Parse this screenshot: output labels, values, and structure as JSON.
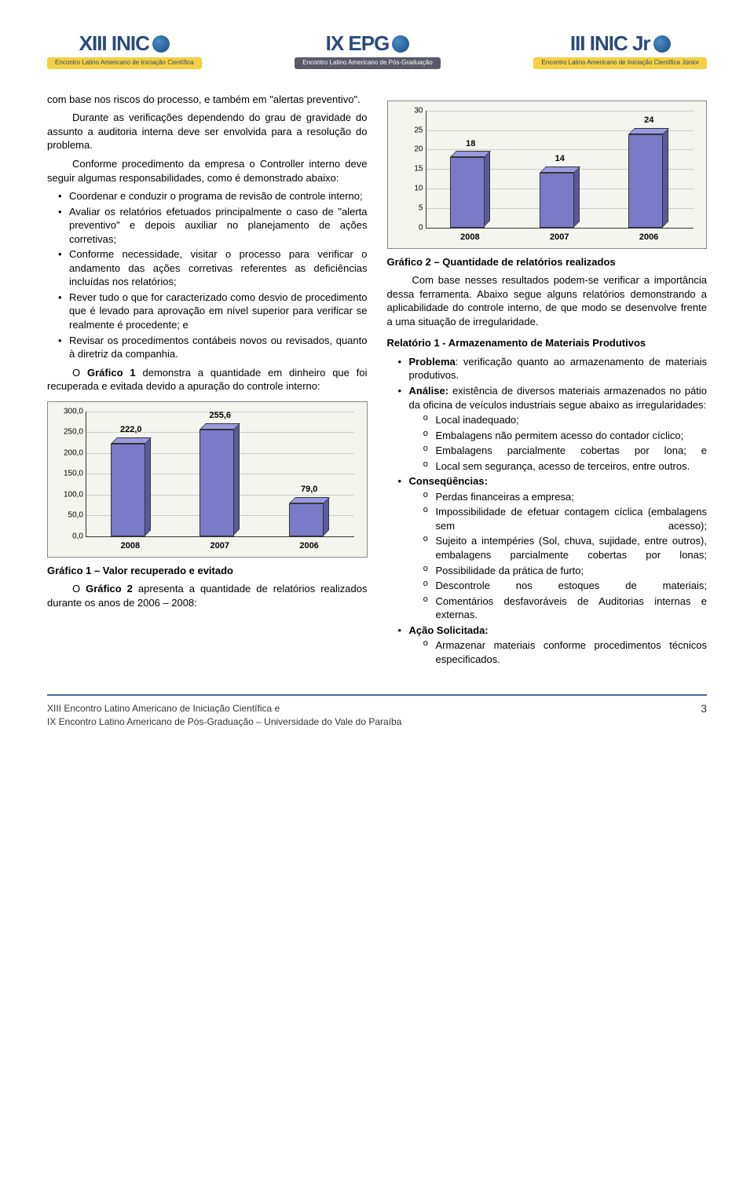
{
  "header": {
    "logos": [
      {
        "title": "XIII INIC",
        "band": "Encontro Latino Americano\nde Iniciação Científica",
        "band_class": ""
      },
      {
        "title": "IX EPG",
        "band": "Encontro Latino Americano\nde Pós-Graduação",
        "band_class": "dark"
      },
      {
        "title": "III INIC Jr",
        "band": "Encontro Latino Americano\nde Iniciação Científica Júnior",
        "band_class": ""
      }
    ]
  },
  "left": {
    "p1": "com base nos riscos do processo, e também em \"alertas preventivo\".",
    "p2": "Durante as verificações dependendo do grau de gravidade do assunto a auditoria interna deve ser envolvida para a resolução do problema.",
    "p3": "Conforme procedimento da empresa o Controller interno deve seguir algumas responsabilidades, como é demonstrado abaixo:",
    "bullets1": [
      "Coordenar e conduzir o programa de revisão de controle interno;",
      "Avaliar os relatórios efetuados principalmente o caso de \"alerta preventivo\" e depois auxiliar no planejamento de ações corretivas;",
      "Conforme necessidade, visitar o processo para verificar o andamento das ações corretivas referentes as deficiências incluídas nos relatórios;",
      "Rever tudo o que for caracterizado como desvio de procedimento que é levado para aprovação em nível superior para verificar se realmente é procedente; e",
      "Revisar os procedimentos contábeis novos ou revisados, quanto à diretriz da companhia."
    ],
    "p4_pre": "O ",
    "p4_bold": "Gráfico 1",
    "p4_post": " demonstra a quantidade em dinheiro que foi recuperada e evitada devido a apuração do controle interno:",
    "chart1": {
      "type": "bar",
      "categories": [
        "2008",
        "2007",
        "2006"
      ],
      "values": [
        222.0,
        255.6,
        79.0
      ],
      "value_labels": [
        "222,0",
        "255,6",
        "79,0"
      ],
      "ylim": [
        0,
        300
      ],
      "yticks": [
        "0,0",
        "50,0",
        "100,0",
        "150,0",
        "200,0",
        "250,0",
        "300,0"
      ],
      "bar_color": "#7a7ac8",
      "bar_side_color": "#5a5a9a",
      "bar_top_color": "#9a9ae0",
      "background_color": "#f5f5f0",
      "grid_color": "#cccccc",
      "label_fontsize": 11,
      "tick_fontsize": 10
    },
    "chart1_title": "Gráfico 1 – Valor recuperado e evitado",
    "p5_pre": "O ",
    "p5_bold": "Gráfico 2",
    "p5_post": " apresenta a quantidade de relatórios realizados durante os anos de 2006 – 2008:"
  },
  "right": {
    "chart2": {
      "type": "bar",
      "categories": [
        "2008",
        "2007",
        "2006"
      ],
      "values": [
        18,
        14,
        24
      ],
      "value_labels": [
        "18",
        "14",
        "24"
      ],
      "ylim": [
        0,
        30
      ],
      "yticks": [
        "0",
        "5",
        "10",
        "15",
        "20",
        "25",
        "30"
      ],
      "bar_color": "#7a7ac8",
      "bar_side_color": "#5a5a9a",
      "bar_top_color": "#9a9ae0",
      "background_color": "#f5f5f0",
      "grid_color": "#cccccc",
      "label_fontsize": 11,
      "tick_fontsize": 10
    },
    "chart2_title": "Gráfico 2 – Quantidade de relatórios realizados",
    "p1": "Com base nesses resultados podem-se verificar a importância dessa ferramenta. Abaixo segue alguns relatórios demonstrando a aplicabilidade do controle interno, de que modo se desenvolve frente a uma situação de irregularidade.",
    "rel1_title": "Relatório 1 - Armazenamento de Materiais Produtivos",
    "b1_kw": "Problema",
    "b1_txt": ": verificação quanto ao armazenamento de materiais produtivos.",
    "b2_kw": "Análise:",
    "b2_txt": " existência de diversos materiais armazenados no pátio da oficina de veículos industriais segue abaixo as irregularidades:",
    "b2_subs": [
      "Local inadequado;",
      "Embalagens não permitem acesso do contador cíclico;",
      "Embalagens parcialmente cobertas por lona; e",
      "Local sem segurança, acesso de terceiros, entre outros."
    ],
    "b3_kw": "Conseqüências:",
    "b3_subs": [
      "Perdas financeiras a empresa;",
      "Impossibilidade de efetuar contagem cíclica (embalagens sem acesso);",
      "Sujeito a intempéries (Sol, chuva, sujidade, entre outros), embalagens parcialmente cobertas por lonas;",
      "Possibilidade da prática de furto;",
      "Descontrole nos estoques de materiais;",
      "Comentários desfavoráveis de Auditorias internas e externas."
    ],
    "b4_kw": "Ação Solicitada:",
    "b4_subs": [
      "Armazenar materiais conforme procedimentos técnicos especificados."
    ]
  },
  "footer": {
    "line1": "XIII Encontro Latino Americano de Iniciação Científica e",
    "line2": "IX Encontro Latino Americano de Pós-Graduação – Universidade do Vale do Paraíba",
    "page": "3"
  }
}
